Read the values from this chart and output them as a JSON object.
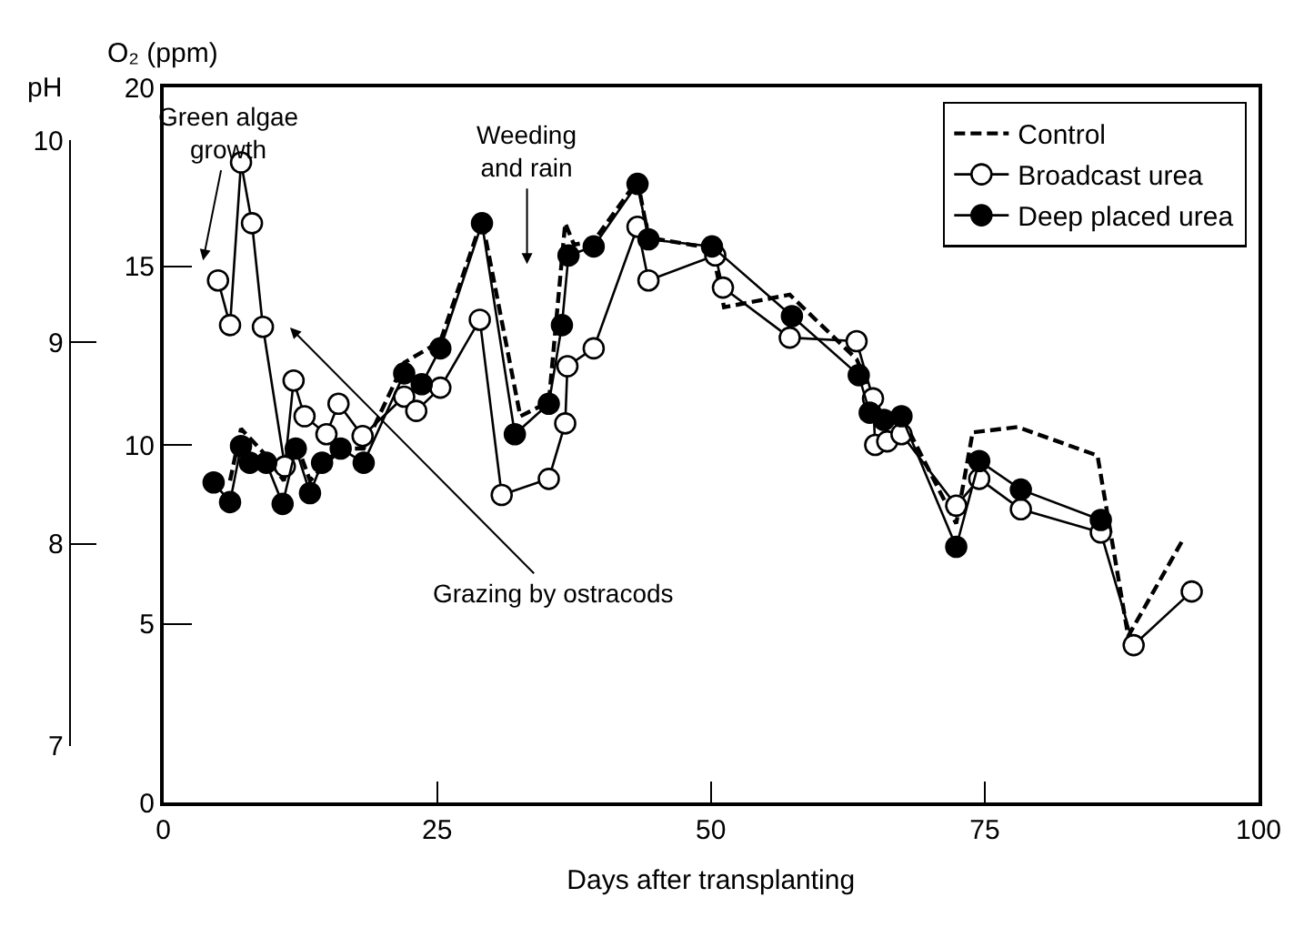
{
  "chart_data": {
    "type": "line",
    "xlabel": "Days after transplanting",
    "ylabel": "O₂ (ppm)",
    "y2label": "pH",
    "xlim": [
      0,
      100
    ],
    "xticks": [
      0,
      25,
      50,
      75,
      100
    ],
    "ylim": [
      0,
      20
    ],
    "yticks": [
      0,
      5,
      10,
      15,
      20
    ],
    "y2lim": [
      7,
      10
    ],
    "y2ticks": [
      7,
      8,
      9,
      10
    ],
    "legend": "top right",
    "grid": false,
    "series": [
      {
        "name": "Control",
        "color": "#000000",
        "marker": "none",
        "line_style": "dashed",
        "x": [
          6.1,
          7.1,
          9.4,
          11.0,
          12.1,
          13.4,
          16.2,
          18.3,
          22.0,
          25.3,
          29.1,
          32.6,
          35.2,
          36.7,
          37.5,
          39.3,
          43.3,
          44.3,
          50.1,
          51.2,
          57.2,
          63.3,
          65.5,
          67.4,
          72.4,
          73.9,
          78.0,
          85.3,
          88.1,
          93.1
        ],
        "values": [
          9.0,
          10.45,
          9.7,
          9.0,
          10.1,
          9.0,
          9.9,
          9.9,
          12.3,
          12.9,
          16.3,
          10.8,
          11.2,
          16.2,
          15.6,
          15.7,
          17.4,
          15.8,
          15.5,
          13.85,
          14.2,
          12.4,
          10.9,
          10.8,
          7.8,
          10.35,
          10.5,
          9.7,
          4.65,
          7.35
        ]
      },
      {
        "name": "Broadcast urea",
        "color": "#ffffff",
        "marker": "circle",
        "line_style": "solid",
        "x": [
          5.0,
          6.1,
          7.1,
          8.1,
          9.1,
          11.1,
          11.9,
          12.9,
          14.9,
          16.0,
          18.2,
          22.0,
          23.1,
          25.3,
          28.9,
          30.9,
          35.2,
          36.7,
          36.9,
          39.3,
          43.3,
          44.3,
          50.4,
          51.1,
          57.2,
          63.3,
          64.8,
          65.0,
          66.1,
          67.4,
          72.4,
          74.5,
          78.3,
          85.6,
          88.6,
          93.9
        ],
        "values": [
          14.6,
          13.35,
          17.9,
          16.2,
          13.3,
          9.4,
          11.8,
          10.8,
          10.3,
          11.15,
          10.25,
          11.35,
          10.95,
          11.6,
          13.5,
          8.6,
          9.05,
          10.6,
          12.2,
          12.7,
          16.1,
          14.6,
          15.3,
          14.4,
          13.0,
          12.9,
          11.3,
          10.0,
          10.1,
          10.3,
          8.3,
          9.05,
          8.2,
          7.55,
          4.4,
          5.9
        ]
      },
      {
        "name": "Deep placed urea",
        "color": "#000000",
        "marker": "circle",
        "line_style": "solid",
        "x": [
          4.6,
          6.1,
          7.1,
          7.9,
          9.4,
          10.9,
          12.1,
          13.4,
          14.5,
          16.2,
          18.3,
          22.0,
          23.6,
          25.3,
          29.1,
          32.1,
          35.2,
          36.4,
          37.0,
          39.3,
          43.3,
          44.3,
          50.1,
          57.4,
          63.5,
          64.5,
          65.8,
          67.4,
          72.4,
          74.5,
          78.3,
          85.6
        ],
        "values": [
          8.95,
          8.4,
          9.97,
          9.5,
          9.5,
          8.35,
          9.9,
          8.65,
          9.5,
          9.9,
          9.5,
          12.0,
          11.7,
          12.7,
          16.2,
          10.3,
          11.15,
          13.35,
          15.3,
          15.55,
          17.3,
          15.75,
          15.55,
          13.6,
          11.95,
          10.9,
          10.7,
          10.8,
          7.15,
          9.55,
          8.75,
          7.9
        ]
      }
    ],
    "annotations": [
      "Green algae\ngrowth",
      "Weeding\nand rain",
      "Grazing by ostracods"
    ]
  }
}
